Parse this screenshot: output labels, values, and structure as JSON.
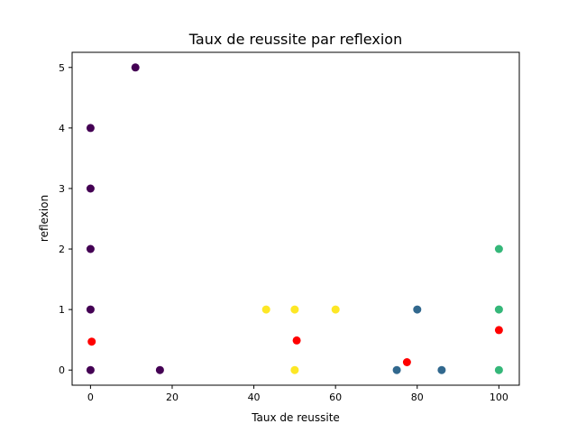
{
  "chart_data": {
    "type": "scatter",
    "title": "Taux de reussite par reflexion",
    "xlabel": "Taux de reussite",
    "ylabel": "reflexion",
    "xlim": [
      -4.5,
      105
    ],
    "ylim": [
      -0.25,
      5.25
    ],
    "xticks": [
      0,
      20,
      40,
      60,
      80,
      100
    ],
    "yticks": [
      0,
      1,
      2,
      3,
      4,
      5
    ],
    "grid": false,
    "legend": "none",
    "colors": {
      "purple": "#440154",
      "blue": "#31688e",
      "green": "#35b779",
      "yellow": "#fde725",
      "red": "#ff0000"
    },
    "series": [
      {
        "color": "purple",
        "points": [
          [
            0,
            0
          ],
          [
            0,
            1
          ],
          [
            0,
            2
          ],
          [
            0,
            3
          ],
          [
            0,
            4
          ],
          [
            11,
            5
          ],
          [
            17,
            0
          ]
        ]
      },
      {
        "color": "blue",
        "points": [
          [
            75,
            0
          ],
          [
            80,
            1
          ],
          [
            86,
            0
          ]
        ]
      },
      {
        "color": "green",
        "points": [
          [
            100,
            2
          ],
          [
            100,
            1
          ],
          [
            100,
            0
          ]
        ]
      },
      {
        "color": "yellow",
        "points": [
          [
            43,
            1
          ],
          [
            50,
            1
          ],
          [
            60,
            1
          ],
          [
            50,
            0
          ]
        ]
      },
      {
        "color": "red",
        "points": [
          [
            0.3,
            0.47
          ],
          [
            50.5,
            0.49
          ],
          [
            77.5,
            0.13
          ],
          [
            100,
            0.66
          ]
        ]
      }
    ]
  }
}
